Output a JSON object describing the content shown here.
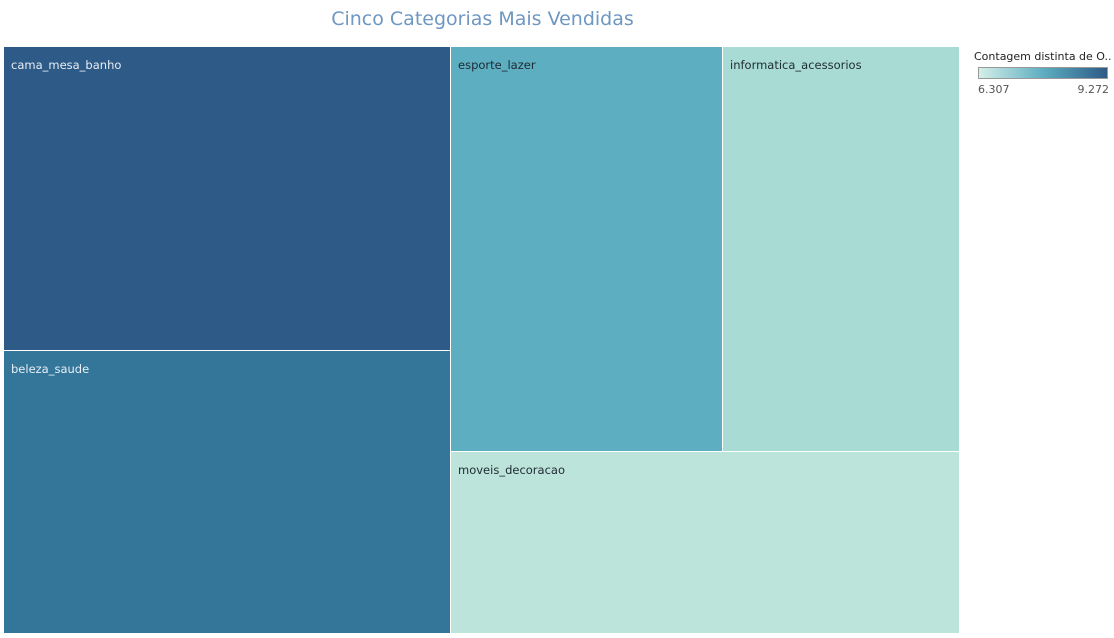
{
  "chart_data": {
    "type": "treemap",
    "title": "Cinco Categorias Mais Vendidas",
    "items": [
      {
        "name": "cama_mesa_banho",
        "value": 9272,
        "color": "#2d5a86",
        "label_color": "#e8eef5"
      },
      {
        "name": "beleza_saude",
        "value": 8500,
        "color": "#337699",
        "label_color": "#e8eef5"
      },
      {
        "name": "esporte_lazer",
        "value": 7500,
        "color": "#5eaec1",
        "label_color": "#1e2a33"
      },
      {
        "name": "informatica_acessorios",
        "value": 6500,
        "color": "#a9dbd5",
        "label_color": "#1e2a33"
      },
      {
        "name": "moveis_decoracao",
        "value": 6307,
        "color": "#bde4da",
        "label_color": "#1e2a33"
      }
    ],
    "legend": {
      "title": "Contagem distinta de O..",
      "min_label": "6.307",
      "max_label": "9.272",
      "min": 6307,
      "max": 9272,
      "gradient": [
        "#d4efe8",
        "#5eaec1",
        "#2d5a86"
      ],
      "placement": "top-right"
    }
  }
}
